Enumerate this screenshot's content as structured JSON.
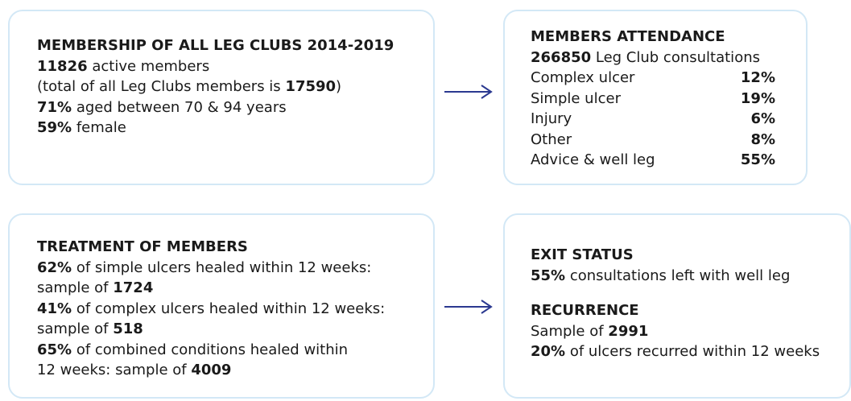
{
  "boxes": [
    {
      "sections": [
        {
          "title": "MEMBERSHIP OF ALL LEG CLUBS 2014-2019",
          "lines": [
            [
              {
                "text": "11826",
                "bold": true
              },
              {
                "text": " active members"
              }
            ],
            [
              {
                "text": "(total of all Leg Clubs members is "
              },
              {
                "text": "17590",
                "bold": true
              },
              {
                "text": ")"
              }
            ],
            [
              {
                "text": "71%",
                "bold": true
              },
              {
                "text": " aged between 70 & 94 years"
              }
            ],
            [
              {
                "text": "59%",
                "bold": true
              },
              {
                "text": " female"
              }
            ]
          ]
        }
      ]
    },
    {
      "sections": [
        {
          "title": "MEMBERS ATTENDANCE",
          "lines": [
            [
              {
                "text": "266850",
                "bold": true
              },
              {
                "text": " Leg Club consultations"
              }
            ]
          ],
          "rows": [
            [
              "Complex ulcer",
              "12%"
            ],
            [
              "Simple ulcer",
              "19%"
            ],
            [
              "Injury",
              "6%"
            ],
            [
              "Other",
              "8%"
            ],
            [
              "Advice & well leg",
              "55%"
            ]
          ]
        }
      ]
    },
    {
      "sections": [
        {
          "title": "TREATMENT OF MEMBERS",
          "lines": [
            [
              {
                "text": "62%",
                "bold": true
              },
              {
                "text": " of simple ulcers healed within 12 weeks:"
              }
            ],
            [
              {
                "text": "sample of "
              },
              {
                "text": "1724",
                "bold": true
              }
            ],
            [
              {
                "text": "41%",
                "bold": true
              },
              {
                "text": " of complex ulcers healed within 12 weeks:"
              }
            ],
            [
              {
                "text": "sample of "
              },
              {
                "text": "518",
                "bold": true
              }
            ],
            [
              {
                "text": "65%",
                "bold": true
              },
              {
                "text": " of combined conditions healed within"
              }
            ],
            [
              {
                "text": "12 weeks: sample of "
              },
              {
                "text": "4009",
                "bold": true
              }
            ]
          ]
        }
      ]
    },
    {
      "sections": [
        {
          "title": "EXIT STATUS",
          "lines": [
            [
              {
                "text": "55%",
                "bold": true
              },
              {
                "text": " consultations left with well leg"
              }
            ]
          ]
        },
        {
          "title": "RECURRENCE",
          "lines": [
            [
              {
                "text": "Sample of "
              },
              {
                "text": "2991",
                "bold": true
              }
            ],
            [
              {
                "text": "20%",
                "bold": true
              },
              {
                "text": " of ulcers recurred within 12 weeks"
              }
            ]
          ]
        }
      ]
    }
  ]
}
